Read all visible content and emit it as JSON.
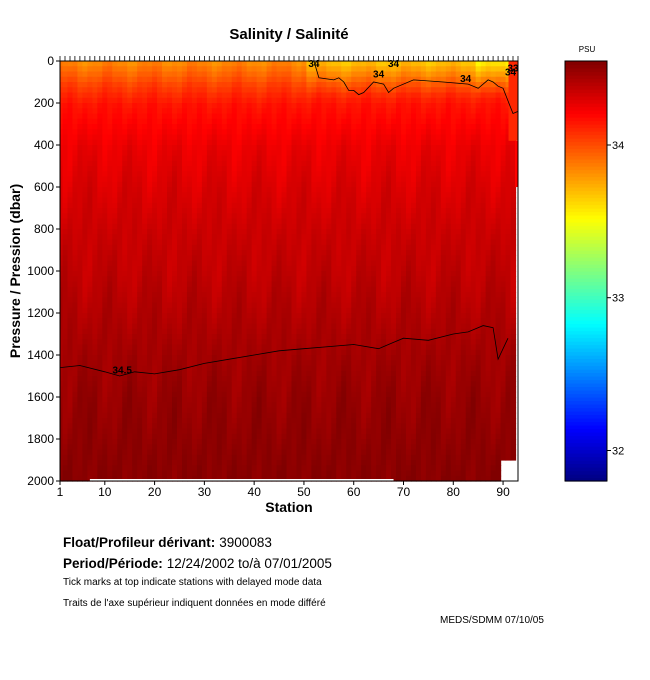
{
  "chart_data": {
    "type": "heatmap",
    "title": "Salinity / Salinité",
    "xlabel": "Station",
    "ylabel": "Pressure / Pression (dbar)",
    "xlim": [
      1,
      93
    ],
    "ylim": [
      2000,
      0
    ],
    "x_ticks": [
      1,
      10,
      20,
      30,
      40,
      50,
      60,
      70,
      80,
      90
    ],
    "y_ticks": [
      0,
      200,
      400,
      600,
      800,
      1000,
      1200,
      1400,
      1600,
      1800,
      2000
    ],
    "colorbar": {
      "unit_label": "PSU",
      "min": 31.8,
      "max": 34.55,
      "ticks": [
        32,
        33,
        34
      ],
      "colormap": "jet"
    },
    "salinity_profile": {
      "pressure_dbar": [
        0,
        100,
        200,
        400,
        600,
        800,
        1000,
        1200,
        1400,
        1600,
        1800,
        2000
      ],
      "salinity_psu": [
        33.9,
        34.05,
        34.16,
        34.26,
        34.31,
        34.35,
        34.38,
        34.42,
        34.46,
        34.49,
        34.51,
        34.53
      ]
    },
    "contours": [
      {
        "label": "34.5",
        "stations": [
          1,
          5,
          10,
          13,
          16,
          20,
          25,
          30,
          35,
          40,
          45,
          50,
          55,
          60,
          65,
          68,
          70,
          75,
          80,
          83,
          86,
          88,
          89,
          91
        ],
        "pressure_dbar": [
          1460,
          1450,
          1480,
          1500,
          1480,
          1490,
          1470,
          1440,
          1420,
          1400,
          1380,
          1370,
          1360,
          1350,
          1370,
          1340,
          1320,
          1330,
          1300,
          1290,
          1260,
          1270,
          1420,
          1320
        ]
      },
      {
        "label": "34",
        "stations": [
          1,
          52,
          53,
          56,
          57,
          58,
          59,
          60,
          61,
          62,
          64,
          66,
          67,
          68,
          72,
          78,
          83,
          85,
          86,
          87,
          88,
          89,
          90,
          91,
          92,
          93
        ],
        "pressure_dbar": [
          0,
          0,
          80,
          90,
          80,
          100,
          140,
          140,
          160,
          150,
          100,
          110,
          150,
          130,
          90,
          100,
          110,
          130,
          110,
          90,
          100,
          120,
          130,
          190,
          250,
          240
        ]
      }
    ],
    "contour_labels": [
      {
        "text": "34.5",
        "station": 13.5,
        "pressure": 1470
      },
      {
        "text": "34",
        "station": 52,
        "pressure": 10
      },
      {
        "text": "34",
        "station": 65,
        "pressure": 60
      },
      {
        "text": "34",
        "station": 68,
        "pressure": 10
      },
      {
        "text": "34",
        "station": 82.5,
        "pressure": 80
      },
      {
        "text": "34",
        "station": 91.5,
        "pressure": 50
      },
      {
        "text": "33",
        "station": 92,
        "pressure": 30
      }
    ],
    "delayed_mode_ticks": "every station 1–93"
  },
  "info": {
    "float_label": "Float/Profileur dérivant:",
    "float_id": "3900083",
    "period_label": "Period/Période:",
    "period_value": "12/24/2002  to/à  07/01/2005",
    "note_en": "Tick marks at top indicate stations with delayed mode data",
    "note_fr": "Traits de l'axe supérieur indiquent données en mode différé"
  },
  "credit": "MEDS/SDMM  07/10/05"
}
